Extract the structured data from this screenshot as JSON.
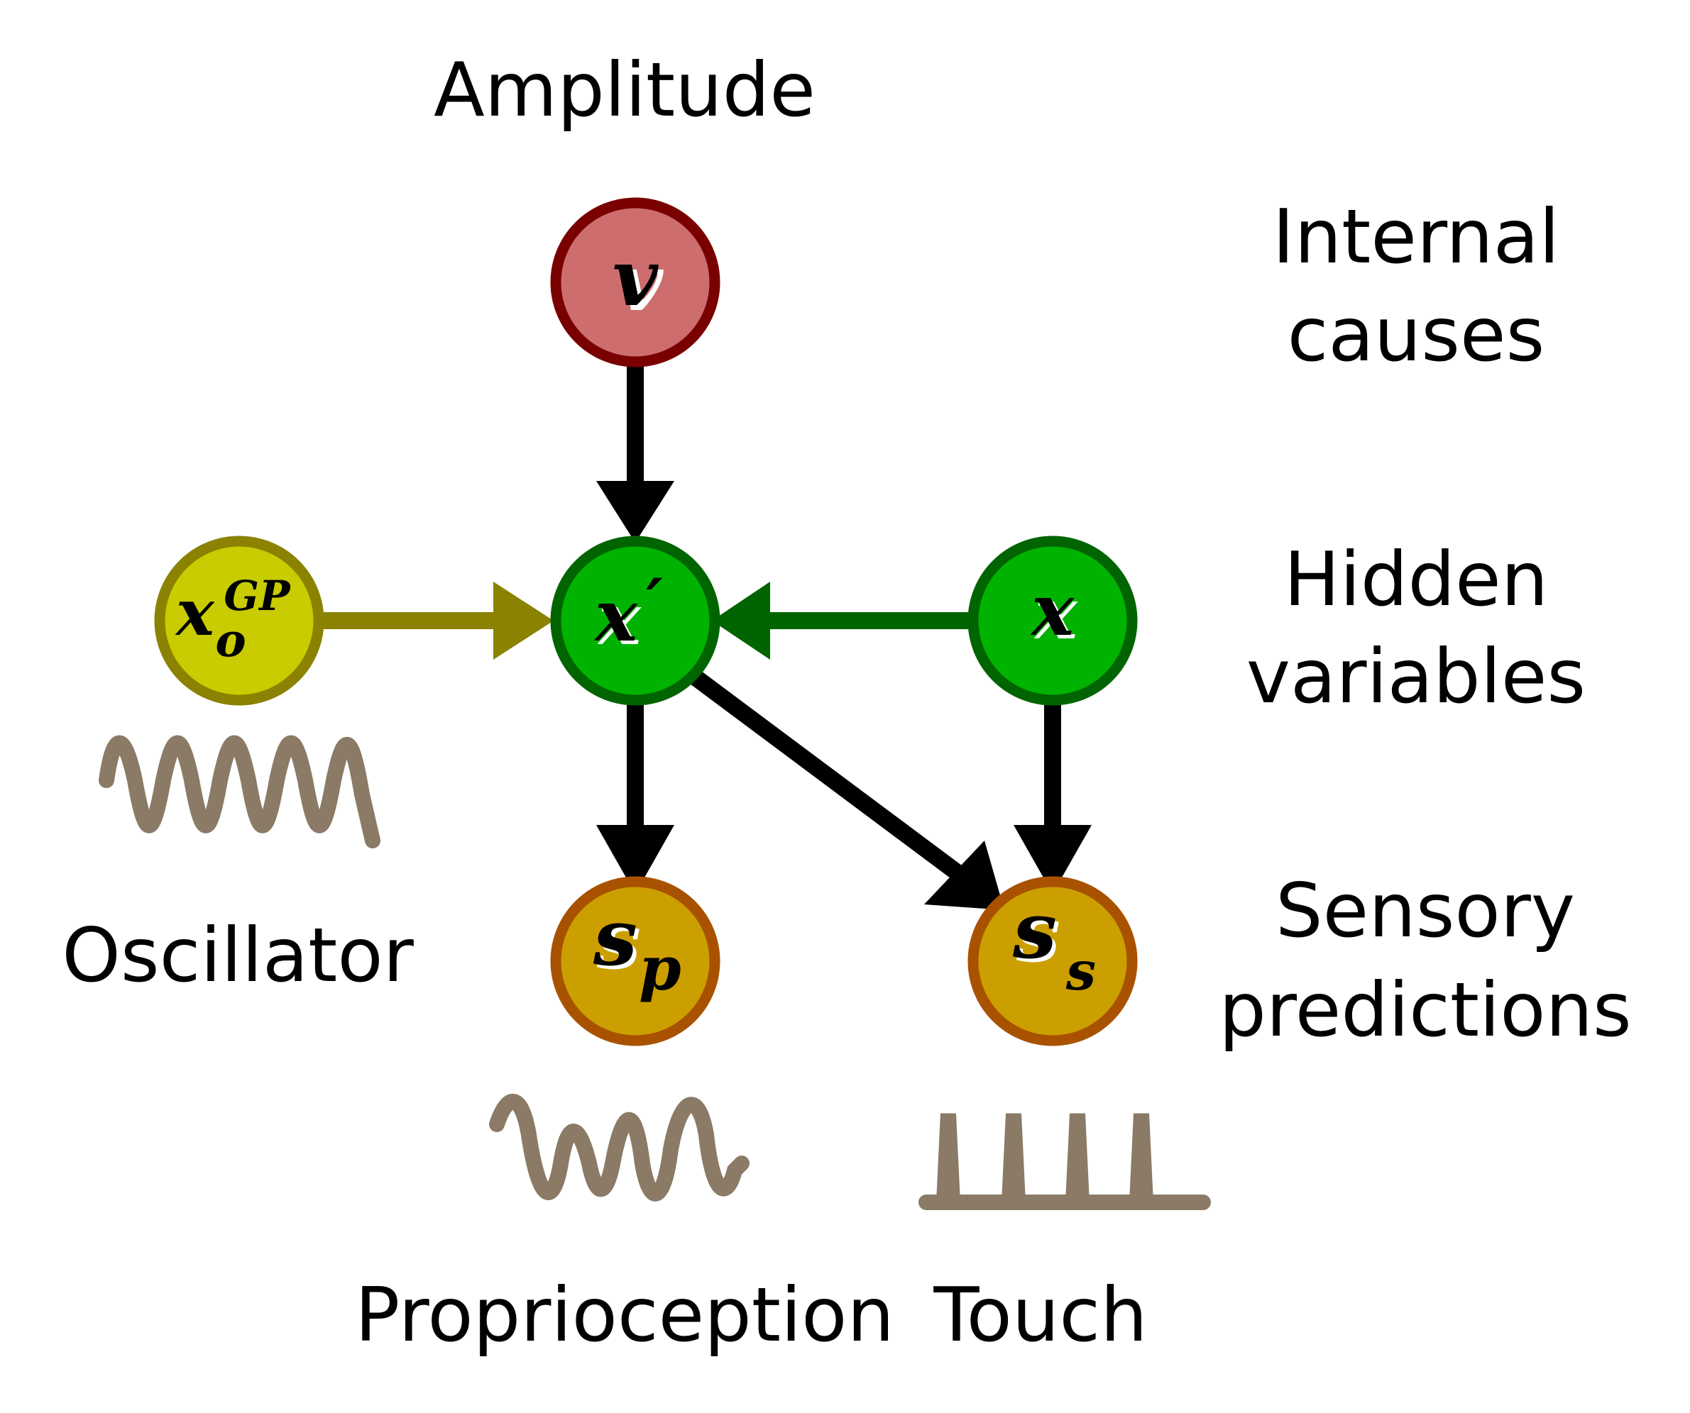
{
  "labels": {
    "amplitude": "Amplitude",
    "internal_causes_1": "Internal",
    "internal_causes_2": "causes",
    "hidden_variables_1": "Hidden",
    "hidden_variables_2": "variables",
    "sensory_predictions_1": "Sensory",
    "sensory_predictions_2": "predictions",
    "oscillator": "Oscillator",
    "proprioception": "Proprioception",
    "touch": "Touch"
  },
  "nodes": {
    "v": {
      "symbol": "v",
      "fill": "#cd6d6d",
      "stroke": "#7a0000"
    },
    "x_prime": {
      "symbol": "x",
      "mark": "′",
      "fill": "#00b300",
      "stroke": "#006400"
    },
    "x": {
      "symbol": "x",
      "fill": "#00b300",
      "stroke": "#006400"
    },
    "x_o": {
      "symbol": "x",
      "subscript": "o",
      "superscript": "GP",
      "fill": "#c8cc00",
      "stroke": "#8a8200"
    },
    "s_p": {
      "symbol": "s",
      "subscript": "p",
      "fill": "#cc9f00",
      "stroke": "#a85200"
    },
    "s_s": {
      "symbol": "s",
      "subscript": "s",
      "fill": "#cc9f00",
      "stroke": "#a85200"
    }
  },
  "edges": [
    {
      "from": "v",
      "to": "x_prime",
      "color": "#000000"
    },
    {
      "from": "x_o",
      "to": "x_prime",
      "color": "#8a8200"
    },
    {
      "from": "x",
      "to": "x_prime",
      "color": "#006400"
    },
    {
      "from": "x_prime",
      "to": "s_p",
      "color": "#000000"
    },
    {
      "from": "x_prime",
      "to": "s_s",
      "color": "#000000"
    },
    {
      "from": "x",
      "to": "s_s",
      "color": "#000000"
    }
  ],
  "waveform_color": "#8a7a66"
}
